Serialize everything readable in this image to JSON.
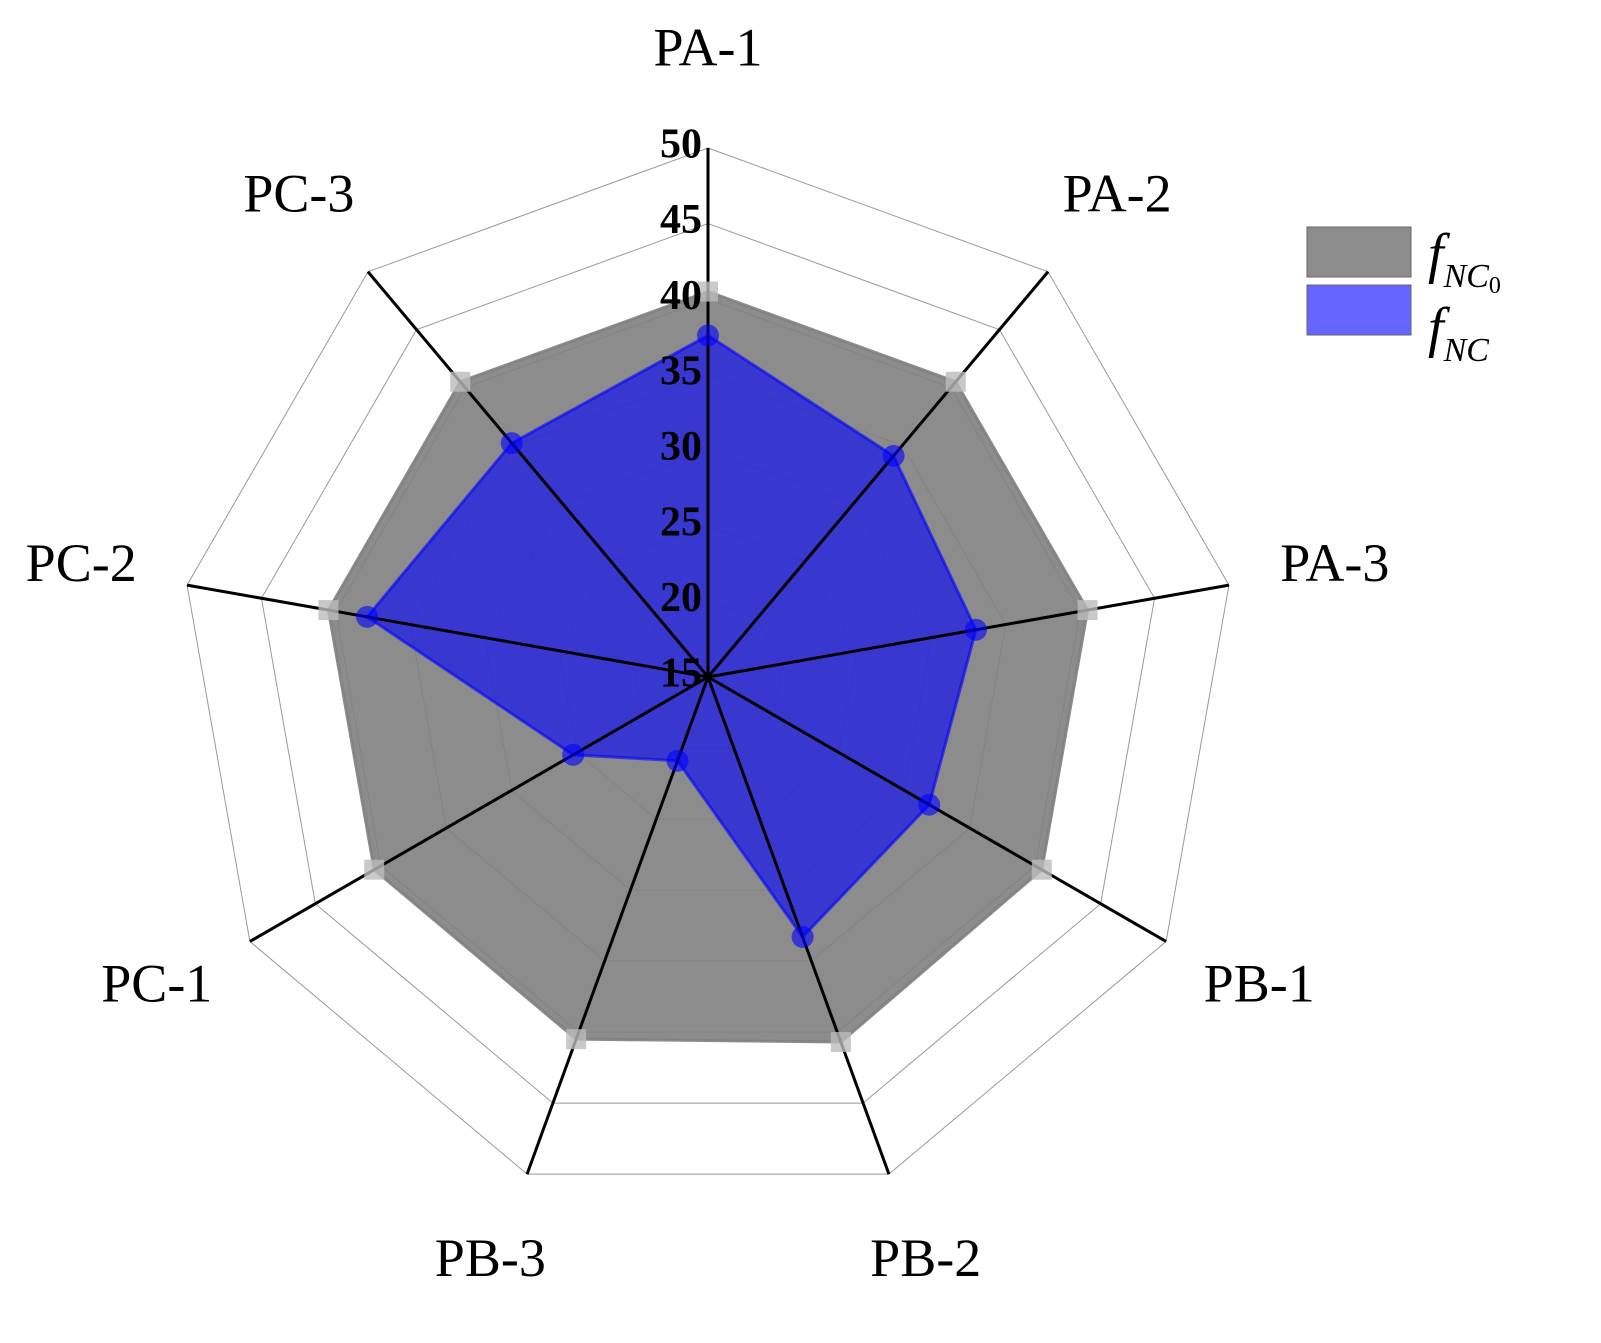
{
  "chart_data": {
    "type": "radar",
    "categories": [
      "PA-1",
      "PA-2",
      "PA-3",
      "PB-1",
      "PB-2",
      "PB-3",
      "PC-1",
      "PC-2",
      "PC-3"
    ],
    "series": [
      {
        "name": "fNC0",
        "color": "#808080",
        "values": [
          40.5,
          40.5,
          40.5,
          40.5,
          40.7,
          40.5,
          40.5,
          40.5,
          40.5
        ]
      },
      {
        "name": "fNC",
        "color": "#0000ff",
        "values": [
          37.6,
          34.1,
          33.0,
          31.9,
          33.3,
          20.9,
          25.3,
          37.9,
          35.2
        ]
      }
    ],
    "ylim": [
      15,
      50
    ],
    "yticks": [
      15,
      20,
      25,
      30,
      35,
      40,
      45,
      50
    ],
    "grid": true
  }
}
